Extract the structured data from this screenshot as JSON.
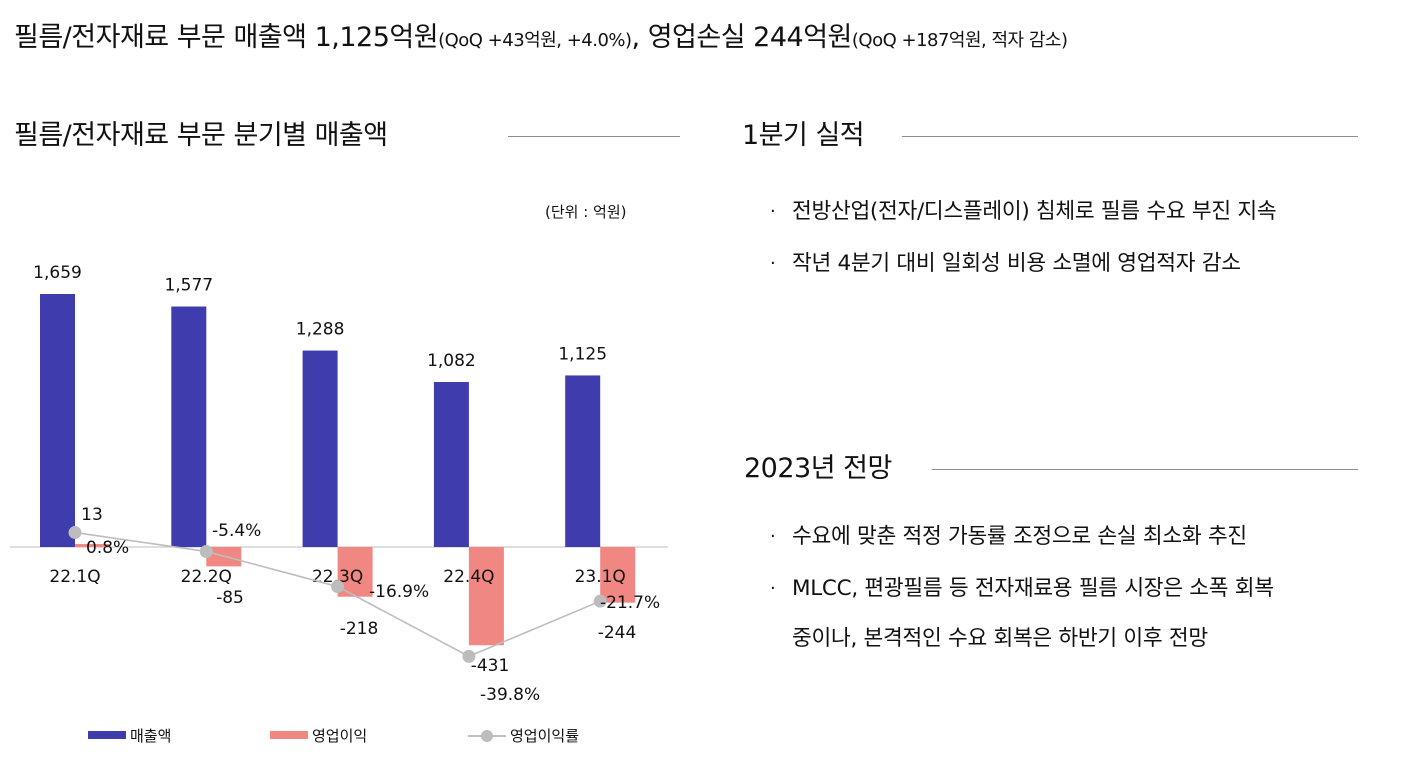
{
  "headline": {
    "part1": "필름/전자재료 부문 매출액 1,125억원",
    "part1_note": "(QoQ +43억원, +4.0%)",
    "sep": ", ",
    "part2": "영업손실 244억원",
    "part2_note": "(QoQ +187억원, 적자 감소)"
  },
  "chart_section": {
    "title": "필름/전자재료 부문 분기별 매출액",
    "unit": "(단위 : 억원)"
  },
  "q1_section": {
    "title": "1분기 실적",
    "bullets": [
      "전방산업(전자/디스플레이) 침체로 필름 수요 부진 지속",
      "작년 4분기 대비 일회성 비용 소멸에 영업적자 감소"
    ]
  },
  "outlook_section": {
    "title": "2023년 전망",
    "bullets": [
      {
        "line1": "수요에 맞춘 적정 가동률 조정으로 손실 최소화 추진",
        "line2": ""
      },
      {
        "line1": "MLCC, 편광필름 등 전자재료용 필름 시장은 소폭 회복",
        "line2": "중이나, 본격적인 수요 회복은 하반기 이후 전망"
      }
    ]
  },
  "bullet_marker": "·",
  "chart_data": {
    "type": "bar",
    "categories": [
      "22.1Q",
      "22.2Q",
      "22.3Q",
      "22.4Q",
      "23.1Q"
    ],
    "series": [
      {
        "name": "매출액",
        "kind": "bar",
        "color": "#3f3cae",
        "values": [
          1659,
          1577,
          1288,
          1082,
          1125
        ],
        "labels": [
          "1,659",
          "1,577",
          "1,288",
          "1,082",
          "1,125"
        ]
      },
      {
        "name": "영업이익",
        "kind": "bar",
        "color": "#f08783",
        "values": [
          13,
          -85,
          -218,
          -431,
          -244
        ],
        "labels": [
          "13",
          "-85",
          "-218",
          "-431",
          "-244"
        ]
      },
      {
        "name": "영업이익률",
        "kind": "line",
        "color": "#bdbdbd",
        "values": [
          0.8,
          -5.4,
          -16.9,
          -39.8,
          -21.7
        ],
        "labels": [
          "0.8%",
          "-5.4%",
          "-16.9%",
          "-39.8%",
          "-21.7%"
        ]
      }
    ],
    "ylim": [
      -700,
      1900
    ],
    "xlabel": "",
    "ylabel": ""
  }
}
